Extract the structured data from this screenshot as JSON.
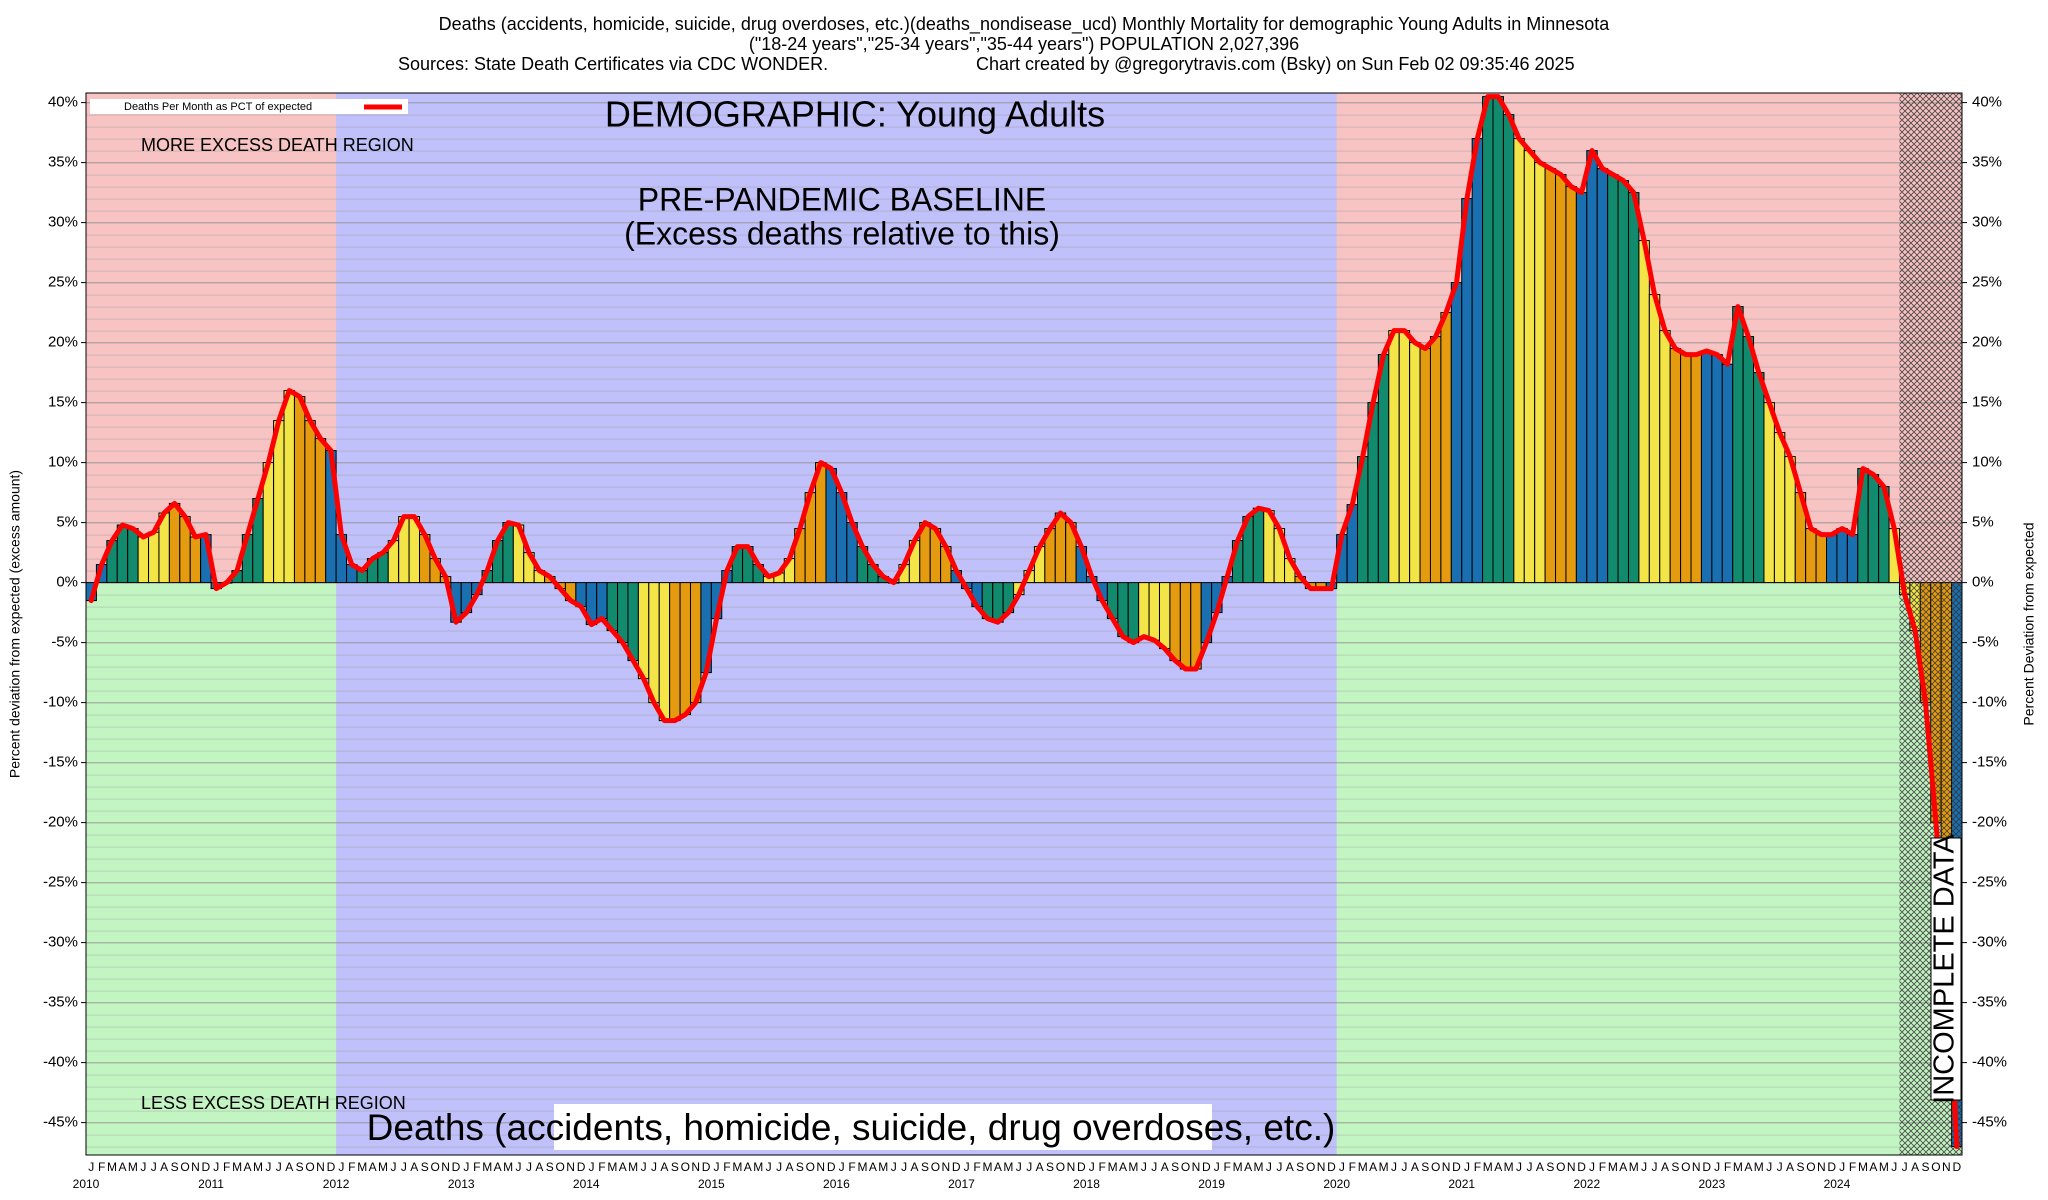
{
  "chart_data": {
    "type": "bar",
    "title": "Deaths (accidents, homicide, suicide, drug overdoses, etc.)(deaths_nondisease_ucd) Monthly Mortality for demographic Young Adults in Minnesota",
    "subtitle": "(\"18-24 years\",\"25-34 years\",\"35-44 years\") POPULATION 2,027,396",
    "source": "Sources: State Death Certificates via CDC WONDER.",
    "credit": "Chart created by @gregorytravis.com (Bsky) on Sun Feb 02 09:35:46 2025",
    "annotations": {
      "demographic": "DEMOGRAPHIC: Young Adults",
      "baseline": "PRE-PANDEMIC BASELINE",
      "baseline_note": "(Excess deaths relative to this)",
      "more": "MORE EXCESS DEATH REGION",
      "less": "LESS EXCESS DEATH REGION",
      "cause": "Deaths (accidents, homicide, suicide, drug overdoses, etc.)",
      "incomplete": "INCOMPLETE DATA"
    },
    "ylabel": "Percent deviation from expected (excess amount)",
    "y2label": "Percent Deviation from expected",
    "months": [
      "J",
      "F",
      "M",
      "A",
      "M",
      "J",
      "J",
      "A",
      "S",
      "O",
      "N",
      "D"
    ],
    "years": [
      "2010",
      "2011",
      "2012",
      "2013",
      "2014",
      "2015",
      "2016",
      "2017",
      "2018",
      "2019",
      "2020",
      "2021",
      "2022",
      "2023",
      "2024"
    ],
    "month_colors": [
      "#1a6fb0",
      "#1a6fb0",
      "#128a6e",
      "#128a6e",
      "#128a6e",
      "#f3e548",
      "#f3e548",
      "#f3e548",
      "#e49b0f",
      "#e49b0f",
      "#e49b0f",
      "#1a6fb0"
    ],
    "series": [
      {
        "name": "Deaths Per Month as PCT of expected",
        "color": "#ff0000",
        "values": [
          -1.5,
          1.5,
          3.5,
          4.8,
          4.5,
          3.8,
          4.2,
          5.8,
          6.6,
          5.5,
          3.8,
          4.0,
          -0.5,
          0,
          1.0,
          4.0,
          7.0,
          10.0,
          13.5,
          16.0,
          15.5,
          13.5,
          12.0,
          11.0,
          4.0,
          1.5,
          1.0,
          2.0,
          2.5,
          3.5,
          5.5,
          5.5,
          4.0,
          2.0,
          0.5,
          -3.3,
          -2.5,
          -1.0,
          1.0,
          3.5,
          5.0,
          4.8,
          2.5,
          1.0,
          0.5,
          -0.5,
          -1.5,
          -2.0,
          -3.5,
          -3.0,
          -4.0,
          -5.0,
          -6.5,
          -8.0,
          -10.0,
          -11.5,
          -11.5,
          -11.0,
          -10.0,
          -7.5,
          -3.0,
          1.0,
          3.0,
          3.0,
          1.5,
          0.5,
          0.8,
          2.0,
          4.5,
          7.5,
          10.0,
          9.5,
          7.5,
          5.0,
          3.0,
          1.5,
          0.5,
          0,
          1.5,
          3.5,
          5.0,
          4.5,
          3.0,
          1.0,
          -0.5,
          -2.0,
          -3.0,
          -3.3,
          -2.5,
          -1.0,
          1.0,
          3.0,
          4.5,
          5.8,
          5.0,
          3.0,
          0.5,
          -1.5,
          -3.0,
          -4.5,
          -5.0,
          -4.5,
          -4.8,
          -5.5,
          -6.5,
          -7.2,
          -7.2,
          -5.0,
          -2.5,
          0.5,
          3.5,
          5.5,
          6.2,
          6.0,
          4.5,
          2.0,
          0.5,
          -0.5,
          -0.5,
          -0.5,
          4.0,
          6.5,
          10.5,
          15.0,
          19.0,
          21.0,
          21.0,
          20.0,
          19.5,
          20.5,
          22.5,
          25.0,
          32.0,
          37.0,
          40.5,
          40.5,
          39.0,
          37.0,
          36.0,
          35.0,
          34.5,
          34.0,
          33.0,
          32.5,
          36.0,
          34.5,
          34.0,
          33.5,
          32.5,
          28.5,
          24.0,
          21.0,
          19.5,
          19.0,
          19.0,
          19.3,
          19.0,
          18.2,
          23.0,
          20.5,
          17.5,
          15.0,
          12.5,
          10.5,
          7.5,
          4.5,
          4.0,
          4.0,
          4.5,
          4.0,
          9.5,
          9.0,
          8.0,
          4.5,
          -1.0,
          -4.0,
          -10.0,
          -20.0,
          -30.0,
          -47.0
        ]
      }
    ],
    "ylim": [
      -47.7,
      40.8
    ],
    "yticks": [
      {
        "value": -45,
        "label": "-45%"
      },
      {
        "value": -40,
        "label": "-40%"
      },
      {
        "value": -35,
        "label": "-35%"
      },
      {
        "value": -30,
        "label": "-30%"
      },
      {
        "value": -25,
        "label": "-25%"
      },
      {
        "value": -20,
        "label": "-20%"
      },
      {
        "value": -15,
        "label": "-15%"
      },
      {
        "value": -10,
        "label": "-10%"
      },
      {
        "value": -5,
        "label": "-5%"
      },
      {
        "value": 0,
        "label": "0%"
      },
      {
        "value": 5,
        "label": "5%"
      },
      {
        "value": 10,
        "label": "10%"
      },
      {
        "value": 15,
        "label": "15%"
      },
      {
        "value": 20,
        "label": "20%"
      },
      {
        "value": 25,
        "label": "25%"
      },
      {
        "value": 30,
        "label": "30%"
      },
      {
        "value": 35,
        "label": "35%"
      },
      {
        "value": 40,
        "label": "40%"
      }
    ],
    "grid": true
  }
}
